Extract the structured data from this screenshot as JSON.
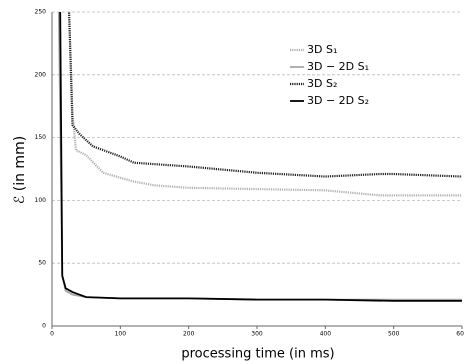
{
  "chart_data": {
    "type": "line",
    "xlabel": "processing time (in ms)",
    "ylabel": "ℰ (in mm)",
    "xlim": [
      0,
      600
    ],
    "xticks": [
      0,
      100,
      200,
      300,
      400,
      500,
      600
    ],
    "ylim": [
      0,
      250
    ],
    "yticks": [
      0,
      50,
      100,
      150,
      200,
      250
    ],
    "grid": true,
    "legend": "upper right",
    "series": [
      {
        "name": "3D S₁",
        "color": "#b0b0b0",
        "dash": "dotted",
        "x": [
          22,
          25,
          30,
          35,
          50,
          75,
          100,
          120,
          150,
          200,
          300,
          400,
          480,
          600
        ],
        "values": [
          260,
          250,
          170,
          140,
          136,
          122,
          118,
          115,
          112,
          110,
          109,
          108,
          104,
          104
        ]
      },
      {
        "name": "3D − 2D S₁",
        "color": "#a8a8a8",
        "dash": "solid",
        "x": [
          9,
          10,
          15,
          20,
          30,
          50,
          100,
          200,
          300,
          400,
          500,
          600
        ],
        "values": [
          260,
          250,
          40,
          28,
          25,
          23,
          22,
          22,
          21,
          21,
          21,
          21
        ]
      },
      {
        "name": "3D S₂",
        "color": "#222222",
        "dash": "dotted",
        "x": [
          24,
          25,
          30,
          40,
          50,
          60,
          75,
          100,
          120,
          200,
          300,
          400,
          480,
          500,
          600
        ],
        "values": [
          260,
          250,
          160,
          153,
          148,
          143,
          140,
          135,
          130,
          127,
          122,
          119,
          121,
          121,
          119
        ]
      },
      {
        "name": "3D − 2D S₂",
        "color": "#000000",
        "dash": "solid",
        "x": [
          11,
          12,
          15,
          20,
          30,
          50,
          100,
          200,
          300,
          400,
          500,
          600
        ],
        "values": [
          260,
          250,
          40,
          30,
          27,
          23,
          22,
          22,
          21,
          21,
          20,
          20
        ]
      }
    ]
  }
}
